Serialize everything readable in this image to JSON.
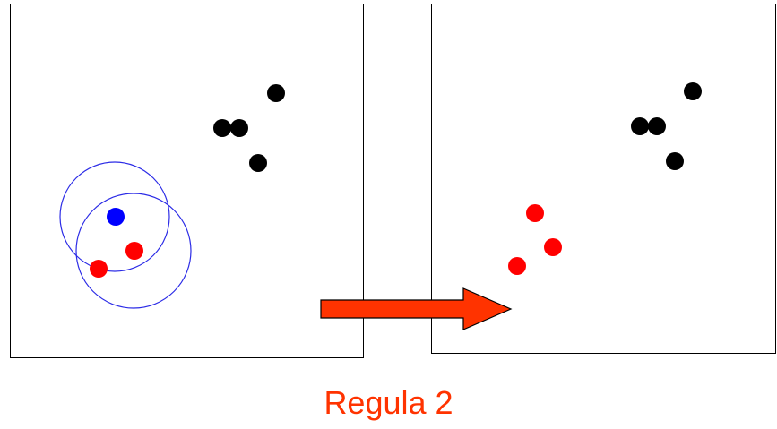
{
  "caption": "Regula 2",
  "colors": {
    "frame": "#000000",
    "black_point": "#000000",
    "red_point": "#ff0000",
    "blue_point": "#0000ff",
    "circle": "#2b2be6",
    "arrow_fill": "#ff3300",
    "arrow_stroke": "#000000",
    "caption": "#ff3300"
  },
  "icons": {
    "arrow": "right-arrow-icon"
  }
}
